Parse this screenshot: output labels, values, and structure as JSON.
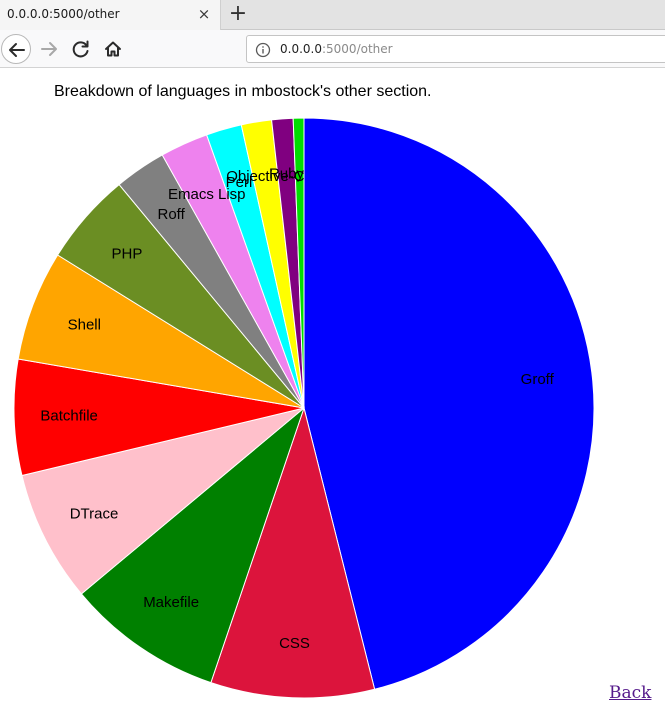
{
  "browser": {
    "tab_title": "0.0.0.0:5000/other",
    "tab_close": "×",
    "new_tab": "+",
    "url_host": "0.0.0.0",
    "url_rest": ":5000/other"
  },
  "page": {
    "title": "Breakdown of languages in mbostock's other section.",
    "back_link": "Back"
  },
  "chart_data": {
    "type": "pie",
    "start": "12 o'clock",
    "direction": "clockwise",
    "slices": [
      {
        "label": "Groff",
        "value": 46.5,
        "color": "#0000ff"
      },
      {
        "label": "CSS",
        "value": 9.2,
        "color": "#dc143c"
      },
      {
        "label": "Makefile",
        "value": 8.8,
        "color": "#008000"
      },
      {
        "label": "DTrace",
        "value": 7.4,
        "color": "#ffc0cb"
      },
      {
        "label": "Batchfile",
        "value": 6.5,
        "color": "#ff0000"
      },
      {
        "label": "Shell",
        "value": 6.2,
        "color": "#ffa500"
      },
      {
        "label": "PHP",
        "value": 5.2,
        "color": "#6b8e23"
      },
      {
        "label": "Roff",
        "value": 2.9,
        "color": "#808080"
      },
      {
        "label": "Emacs Lisp",
        "value": 2.7,
        "color": "#ee82ee"
      },
      {
        "label": "Perl",
        "value": 2.0,
        "color": "#00ffff"
      },
      {
        "label": "Objective-C",
        "value": 1.7,
        "color": "#ffff00"
      },
      {
        "label": "Ruby",
        "value": 1.2,
        "color": "#800080"
      },
      {
        "label": "",
        "value": 0.6,
        "color": "#00dd00"
      }
    ]
  }
}
